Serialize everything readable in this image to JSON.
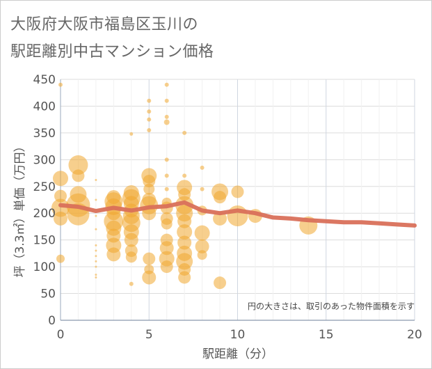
{
  "title_line1": "大阪府大阪市福島区玉川の",
  "title_line2": "駅距離別中古マンション価格",
  "chart_data": {
    "type": "scatter",
    "xlabel": "駅距離（分）",
    "ylabel": "坪（3.3㎡）単価（万円）",
    "xlim": [
      0,
      20
    ],
    "ylim": [
      0,
      450
    ],
    "x_ticks": [
      "0",
      "5",
      "10",
      "15",
      "20"
    ],
    "y_ticks": [
      "0",
      "50",
      "100",
      "150",
      "200",
      "250",
      "300",
      "350",
      "400",
      "450"
    ],
    "annotation": "円の大きさは、取引のあった物件面積を示す",
    "grid": true,
    "colors": {
      "bubble": "#f0a830",
      "trend": "#d9705a"
    },
    "trend": {
      "x": [
        0,
        1,
        2,
        3,
        4,
        5,
        6,
        7,
        8,
        9,
        10,
        11,
        12,
        13,
        14,
        15,
        16,
        17,
        18,
        19,
        20
      ],
      "y": [
        215,
        212,
        204,
        210,
        205,
        211,
        213,
        220,
        205,
        200,
        205,
        200,
        192,
        190,
        187,
        185,
        183,
        183,
        181,
        179,
        177
      ]
    },
    "points": [
      {
        "x": 0,
        "y": 440,
        "s": 3
      },
      {
        "x": 0,
        "y": 265,
        "s": 11
      },
      {
        "x": 0,
        "y": 232,
        "s": 9
      },
      {
        "x": 0,
        "y": 210,
        "s": 13
      },
      {
        "x": 0,
        "y": 190,
        "s": 10
      },
      {
        "x": 0,
        "y": 115,
        "s": 6
      },
      {
        "x": 1,
        "y": 290,
        "s": 14
      },
      {
        "x": 1,
        "y": 270,
        "s": 9
      },
      {
        "x": 1,
        "y": 235,
        "s": 12
      },
      {
        "x": 1,
        "y": 215,
        "s": 17
      },
      {
        "x": 1,
        "y": 198,
        "s": 16
      },
      {
        "x": 2,
        "y": 262,
        "s": 1.5
      },
      {
        "x": 2,
        "y": 225,
        "s": 1.5
      },
      {
        "x": 2,
        "y": 195,
        "s": 1.5
      },
      {
        "x": 2,
        "y": 170,
        "s": 1.5
      },
      {
        "x": 2,
        "y": 140,
        "s": 1.5
      },
      {
        "x": 2,
        "y": 130,
        "s": 1.5
      },
      {
        "x": 2,
        "y": 120,
        "s": 1.5
      },
      {
        "x": 2,
        "y": 110,
        "s": 1.5
      },
      {
        "x": 2,
        "y": 100,
        "s": 1.5
      },
      {
        "x": 2,
        "y": 85,
        "s": 1.5
      },
      {
        "x": 2,
        "y": 80,
        "s": 1.5
      },
      {
        "x": 3,
        "y": 230,
        "s": 10
      },
      {
        "x": 3,
        "y": 222,
        "s": 13
      },
      {
        "x": 3,
        "y": 212,
        "s": 12
      },
      {
        "x": 3,
        "y": 200,
        "s": 10
      },
      {
        "x": 3,
        "y": 185,
        "s": 14
      },
      {
        "x": 3,
        "y": 172,
        "s": 11
      },
      {
        "x": 3,
        "y": 158,
        "s": 10
      },
      {
        "x": 3,
        "y": 140,
        "s": 11
      },
      {
        "x": 3,
        "y": 123,
        "s": 10
      },
      {
        "x": 4,
        "y": 348,
        "s": 2.5
      },
      {
        "x": 4,
        "y": 238,
        "s": 11
      },
      {
        "x": 4,
        "y": 228,
        "s": 13
      },
      {
        "x": 4,
        "y": 218,
        "s": 11
      },
      {
        "x": 4,
        "y": 205,
        "s": 10
      },
      {
        "x": 4,
        "y": 195,
        "s": 12
      },
      {
        "x": 4,
        "y": 182,
        "s": 13
      },
      {
        "x": 4,
        "y": 165,
        "s": 11
      },
      {
        "x": 4,
        "y": 150,
        "s": 10
      },
      {
        "x": 4,
        "y": 130,
        "s": 9
      },
      {
        "x": 4,
        "y": 118,
        "s": 8
      },
      {
        "x": 4,
        "y": 68,
        "s": 3
      },
      {
        "x": 5,
        "y": 410,
        "s": 3
      },
      {
        "x": 5,
        "y": 390,
        "s": 3
      },
      {
        "x": 5,
        "y": 375,
        "s": 3
      },
      {
        "x": 5,
        "y": 355,
        "s": 3
      },
      {
        "x": 5,
        "y": 270,
        "s": 11
      },
      {
        "x": 5,
        "y": 260,
        "s": 9
      },
      {
        "x": 5,
        "y": 245,
        "s": 8
      },
      {
        "x": 5,
        "y": 225,
        "s": 10
      },
      {
        "x": 5,
        "y": 215,
        "s": 13
      },
      {
        "x": 5,
        "y": 200,
        "s": 10
      },
      {
        "x": 5,
        "y": 115,
        "s": 9
      },
      {
        "x": 5,
        "y": 95,
        "s": 7
      },
      {
        "x": 5,
        "y": 80,
        "s": 10
      },
      {
        "x": 6,
        "y": 440,
        "s": 3
      },
      {
        "x": 6,
        "y": 410,
        "s": 3
      },
      {
        "x": 6,
        "y": 380,
        "s": 3
      },
      {
        "x": 6,
        "y": 370,
        "s": 4
      },
      {
        "x": 6,
        "y": 300,
        "s": 3
      },
      {
        "x": 6,
        "y": 270,
        "s": 3
      },
      {
        "x": 6,
        "y": 245,
        "s": 3
      },
      {
        "x": 6,
        "y": 220,
        "s": 7
      },
      {
        "x": 6,
        "y": 210,
        "s": 9
      },
      {
        "x": 6,
        "y": 190,
        "s": 9
      },
      {
        "x": 6,
        "y": 180,
        "s": 8
      },
      {
        "x": 6,
        "y": 150,
        "s": 9
      },
      {
        "x": 6,
        "y": 135,
        "s": 10
      },
      {
        "x": 6,
        "y": 115,
        "s": 11
      },
      {
        "x": 6,
        "y": 100,
        "s": 9
      },
      {
        "x": 7,
        "y": 350,
        "s": 3
      },
      {
        "x": 7,
        "y": 270,
        "s": 3
      },
      {
        "x": 7,
        "y": 248,
        "s": 11
      },
      {
        "x": 7,
        "y": 235,
        "s": 9
      },
      {
        "x": 7,
        "y": 215,
        "s": 13
      },
      {
        "x": 7,
        "y": 200,
        "s": 12
      },
      {
        "x": 7,
        "y": 185,
        "s": 10
      },
      {
        "x": 7,
        "y": 165,
        "s": 11
      },
      {
        "x": 7,
        "y": 145,
        "s": 10
      },
      {
        "x": 7,
        "y": 125,
        "s": 11
      },
      {
        "x": 7,
        "y": 110,
        "s": 12
      },
      {
        "x": 7,
        "y": 95,
        "s": 9
      },
      {
        "x": 7,
        "y": 80,
        "s": 9
      },
      {
        "x": 8,
        "y": 285,
        "s": 3
      },
      {
        "x": 8,
        "y": 245,
        "s": 3
      },
      {
        "x": 8,
        "y": 205,
        "s": 7
      },
      {
        "x": 8,
        "y": 163,
        "s": 11
      },
      {
        "x": 8,
        "y": 138,
        "s": 10
      },
      {
        "x": 8,
        "y": 122,
        "s": 7
      },
      {
        "x": 9,
        "y": 240,
        "s": 12
      },
      {
        "x": 9,
        "y": 230,
        "s": 9
      },
      {
        "x": 9,
        "y": 190,
        "s": 10
      },
      {
        "x": 9,
        "y": 70,
        "s": 9
      },
      {
        "x": 10,
        "y": 240,
        "s": 9
      },
      {
        "x": 10,
        "y": 195,
        "s": 15
      },
      {
        "x": 11,
        "y": 195,
        "s": 10
      },
      {
        "x": 14,
        "y": 177,
        "s": 13
      }
    ]
  }
}
